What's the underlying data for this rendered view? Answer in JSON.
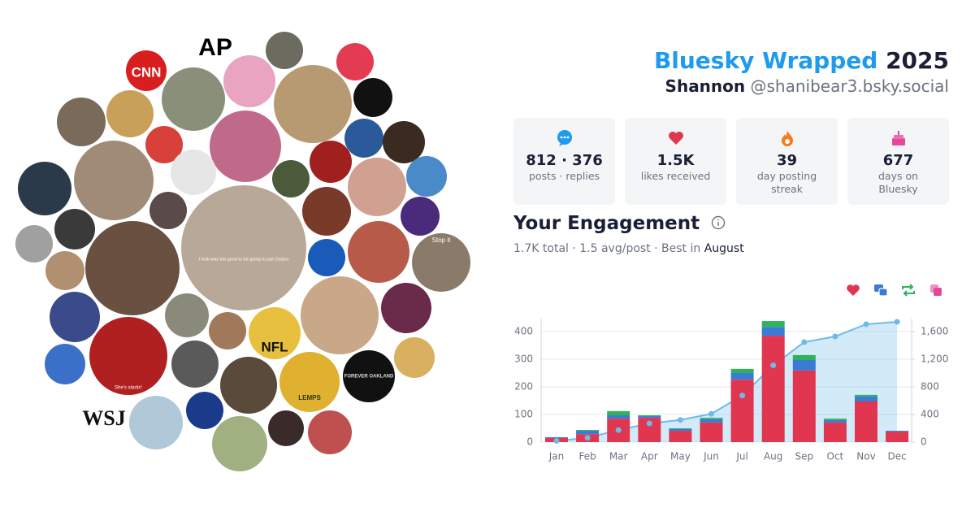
{
  "header": {
    "title": "Bluesky Wrapped",
    "year": "2025",
    "name": "Shannon",
    "handle": "@shanibear3.bsky.social"
  },
  "stats": [
    {
      "value": "812 · 376",
      "label": "posts · replies"
    },
    {
      "value": "1.5K",
      "label": "likes received"
    },
    {
      "value": "39",
      "label": "day posting streak"
    },
    {
      "value": "677",
      "label": "days on Bluesky"
    }
  ],
  "engagement": {
    "title": "Your Engagement",
    "summary": "1.7K total · 1.5 avg/post · Best in",
    "best": "August"
  },
  "avatar_text": [
    "CNN",
    "AP",
    "WSJ",
    "NFL",
    "Stop it",
    "LEMPS",
    "FOREVER OAKLAND",
    "I look way too good to be going to just Costco",
    "She's startin'"
  ],
  "chart_data": {
    "type": "bar",
    "stacked": true,
    "grid": true,
    "categories": [
      "Jan",
      "Feb",
      "Mar",
      "Apr",
      "May",
      "Jun",
      "Jul",
      "Aug",
      "Sep",
      "Oct",
      "Nov",
      "Dec"
    ],
    "series": [
      {
        "color": "#e0364f",
        "values": [
          15,
          29,
          85,
          88,
          41,
          71,
          226,
          385,
          259,
          71,
          147,
          38
        ]
      },
      {
        "color": "#3a7bd5",
        "values": [
          3,
          12,
          12,
          6,
          7,
          12,
          24,
          32,
          38,
          9,
          18,
          3
        ]
      },
      {
        "color": "#2fb35a",
        "values": [
          0,
          3,
          15,
          3,
          2,
          5,
          15,
          21,
          18,
          5,
          6,
          0
        ]
      },
      {
        "color": "#e5489a",
        "values": [
          0,
          0,
          0,
          0,
          0,
          0,
          0,
          0,
          0,
          0,
          0,
          0
        ]
      },
      {
        "type": "line",
        "area": true,
        "axis": "y2",
        "color": "#6cbbec",
        "values": [
          18,
          62,
          174,
          271,
          321,
          409,
          674,
          1112,
          1447,
          1529,
          1706,
          1741
        ]
      }
    ],
    "ylim": [
      0,
      447
    ],
    "yticks": [
      0,
      100,
      200,
      300,
      400
    ],
    "y2lim": [
      0,
      1788
    ],
    "y2ticks": [
      0,
      400,
      800,
      {
        "value": 1200,
        "label": "1,200"
      },
      {
        "value": 1600,
        "label": "1,600"
      }
    ]
  }
}
